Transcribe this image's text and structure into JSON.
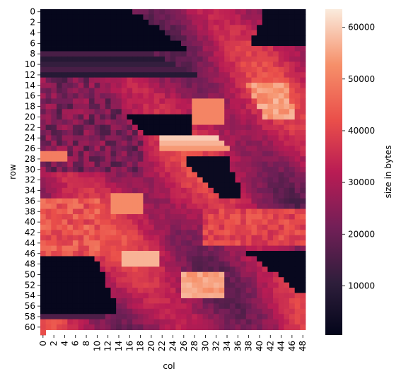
{
  "chart_data": {
    "type": "heatmap",
    "title": "",
    "xlabel": "col",
    "ylabel": "row",
    "rows": 62,
    "cols": 49,
    "x_tick_labels": [
      "0",
      "2",
      "4",
      "6",
      "8",
      "10",
      "12",
      "14",
      "16",
      "18",
      "20",
      "22",
      "24",
      "26",
      "28",
      "30",
      "32",
      "34",
      "36",
      "38",
      "40",
      "42",
      "44",
      "46",
      "48"
    ],
    "y_tick_labels": [
      "0",
      "2",
      "4",
      "6",
      "8",
      "10",
      "12",
      "14",
      "16",
      "18",
      "20",
      "22",
      "24",
      "26",
      "28",
      "30",
      "32",
      "34",
      "36",
      "38",
      "40",
      "42",
      "44",
      "46",
      "48",
      "50",
      "52",
      "54",
      "56",
      "58",
      "60"
    ],
    "colorbar": {
      "label": "size in bytes",
      "range": [
        500,
        63500
      ],
      "tick_labels": [
        "10000",
        "20000",
        "30000",
        "40000",
        "50000",
        "60000"
      ],
      "ticks": [
        10000,
        20000,
        30000,
        40000,
        50000,
        60000
      ],
      "colormap_stops": [
        "#03051a",
        "#2e1e3b",
        "#721f57",
        "#b91c54",
        "#ea4f4a",
        "#f6906a",
        "#faebdd"
      ]
    },
    "regions": [
      {
        "name": "dark top-left wedge",
        "value": 1500
      },
      {
        "name": "bright streak rows 24-26",
        "value": 62000
      },
      {
        "name": "bright patch rows 46-48",
        "value": 58000
      },
      {
        "name": "bright patch rows 50-54",
        "value": 55000
      },
      {
        "name": "dark bottom-left wedge",
        "value": 2000
      },
      {
        "name": "dark bottom-right wedge",
        "value": 2000
      }
    ]
  }
}
